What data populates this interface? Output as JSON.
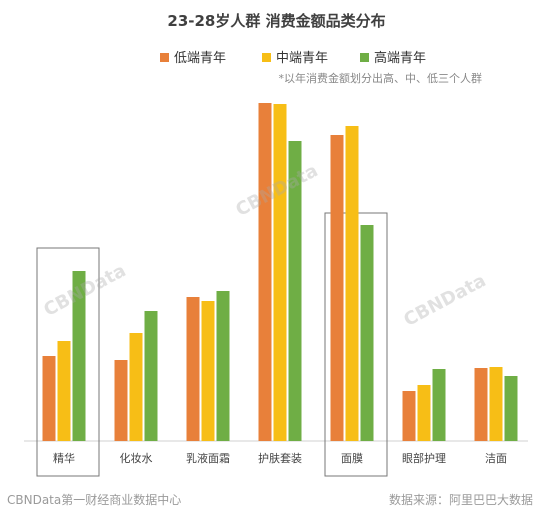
{
  "chart_data": {
    "type": "bar",
    "title": "23-28岁人群 消费金额品类分布",
    "note": "*以年消费金额划分出高、中、低三个人群",
    "categories": [
      "精华",
      "化妆水",
      "乳液面霜",
      "护肤套装",
      "面膜",
      "眼部护理",
      "洁面"
    ],
    "series": [
      {
        "name": "低端青年",
        "color": "#E8803A",
        "values": [
          85,
          81,
          144,
          338,
          306,
          50,
          73
        ]
      },
      {
        "name": "中端青年",
        "color": "#F7BE16",
        "values": [
          100,
          108,
          140,
          337,
          315,
          56,
          74
        ]
      },
      {
        "name": "高端青年",
        "color": "#6FAE45",
        "values": [
          170,
          130,
          150,
          300,
          216,
          72,
          65
        ]
      }
    ],
    "ylim": [
      0,
      340
    ],
    "highlighted_categories": [
      "精华",
      "面膜"
    ],
    "grid": false,
    "legend_position": "top"
  },
  "footer": {
    "left": "CBNData第一财经商业数据中心",
    "right": "数据来源：阿里巴巴大数据"
  },
  "watermarks": [
    "CBNData",
    "CBNData",
    "CBNData"
  ],
  "colors": {
    "axis": "#d0d0d0",
    "highlight_box": "#777777"
  }
}
